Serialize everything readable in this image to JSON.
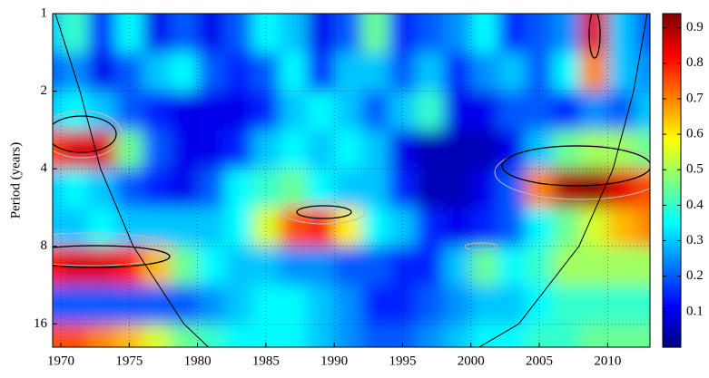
{
  "chart_data": {
    "type": "heatmap",
    "ylabel": "Period (years)",
    "x": [
      1969,
      1971,
      1973,
      1975,
      1977,
      1979,
      1981,
      1983,
      1985,
      1987,
      1989,
      1991,
      1993,
      1995,
      1997,
      1999,
      2001,
      2003,
      2005,
      2007,
      2009,
      2011,
      2013
    ],
    "y": [
      1.19,
      1.68,
      2.38,
      3.36,
      4.76,
      6.73,
      9.51,
      13.45,
      19.03
    ],
    "z": [
      [
        0.3,
        0.4,
        0.15,
        0.35,
        0.1,
        0.2,
        0.1,
        0.2,
        0.35,
        0.3,
        0.1,
        0.2,
        0.45,
        0.15,
        0.2,
        0.25,
        0.35,
        0.15,
        0.2,
        0.25,
        0.85,
        0.3,
        0.2
      ],
      [
        0.2,
        0.25,
        0.1,
        0.2,
        0.3,
        0.35,
        0.2,
        0.15,
        0.2,
        0.35,
        0.15,
        0.3,
        0.3,
        0.2,
        0.3,
        0.15,
        0.25,
        0.3,
        0.2,
        0.35,
        0.7,
        0.3,
        0.25
      ],
      [
        0.3,
        0.35,
        0.3,
        0.2,
        0.15,
        0.1,
        0.1,
        0.1,
        0.15,
        0.3,
        0.35,
        0.3,
        0.2,
        0.3,
        0.4,
        0.1,
        0.1,
        0.2,
        0.2,
        0.15,
        0.25,
        0.2,
        0.3
      ],
      [
        0.75,
        0.85,
        0.85,
        0.45,
        0.2,
        0.1,
        0.1,
        0.15,
        0.3,
        0.35,
        0.3,
        0.35,
        0.3,
        0.1,
        0.05,
        0.05,
        0.05,
        0.1,
        0.3,
        0.45,
        0.5,
        0.5,
        0.45
      ],
      [
        0.3,
        0.35,
        0.3,
        0.2,
        0.15,
        0.1,
        0.2,
        0.35,
        0.4,
        0.45,
        0.35,
        0.3,
        0.3,
        0.15,
        0.05,
        0.05,
        0.1,
        0.2,
        0.7,
        0.9,
        0.92,
        0.85,
        0.75
      ],
      [
        0.3,
        0.3,
        0.35,
        0.3,
        0.3,
        0.3,
        0.3,
        0.35,
        0.55,
        0.75,
        0.8,
        0.6,
        0.35,
        0.3,
        0.15,
        0.1,
        0.15,
        0.2,
        0.35,
        0.45,
        0.55,
        0.65,
        0.7
      ],
      [
        0.8,
        0.85,
        0.85,
        0.8,
        0.65,
        0.45,
        0.35,
        0.3,
        0.3,
        0.25,
        0.25,
        0.2,
        0.2,
        0.15,
        0.15,
        0.3,
        0.45,
        0.35,
        0.4,
        0.5,
        0.5,
        0.5,
        0.5
      ],
      [
        0.2,
        0.2,
        0.2,
        0.2,
        0.2,
        0.2,
        0.25,
        0.3,
        0.35,
        0.35,
        0.3,
        0.25,
        0.15,
        0.15,
        0.2,
        0.25,
        0.3,
        0.3,
        0.35,
        0.4,
        0.4,
        0.4,
        0.4
      ],
      [
        0.75,
        0.75,
        0.7,
        0.65,
        0.55,
        0.45,
        0.4,
        0.35,
        0.35,
        0.35,
        0.3,
        0.25,
        0.2,
        0.2,
        0.25,
        0.3,
        0.35,
        0.35,
        0.4,
        0.4,
        0.45,
        0.45,
        0.45
      ]
    ],
    "xlim": [
      1969.4,
      2013.1
    ],
    "xticks": [
      1970,
      1975,
      1980,
      1985,
      1990,
      1995,
      2000,
      2005,
      2010
    ],
    "ylim": [
      1,
      19.7
    ],
    "yticks": [
      1,
      2,
      4,
      8,
      16
    ],
    "log_y": true,
    "y_reversed": true,
    "grid": true,
    "colormap": "jet",
    "clim": [
      0,
      0.94
    ],
    "colorbar_ticks": [
      0.1,
      0.2,
      0.3,
      0.4,
      0.5,
      0.6,
      0.7,
      0.8,
      0.9
    ],
    "cone_of_influence": [
      {
        "x": [
          1969.6,
          1971.4,
          1972.9,
          1975.3,
          1979.0,
          1980.8
        ],
        "y": [
          1,
          2,
          4,
          8,
          16,
          19.7
        ]
      },
      {
        "x": [
          2012.9,
          2011.9,
          2010.4,
          2007.9,
          2003.5,
          2000.6
        ],
        "y": [
          1,
          2,
          4,
          8,
          16,
          19.7
        ]
      }
    ]
  }
}
